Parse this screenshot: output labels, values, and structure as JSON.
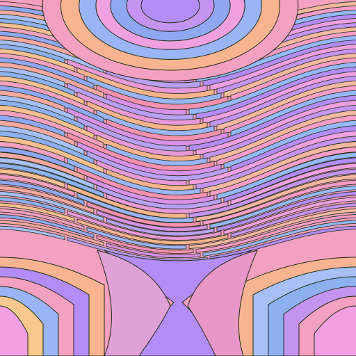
{
  "artwork": {
    "kind": "abstract-wave-bands",
    "outline_color": "#1b2a12",
    "palette": [
      "#f4a0c0",
      "#b48cf8",
      "#f7b48c",
      "#8fa8f4",
      "#f0a0e0",
      "#9ab4f8",
      "#f8a8a0",
      "#c494f0",
      "#f890b0",
      "#a8c0f8",
      "#f4b8a0",
      "#d890e8",
      "#8cb0f0",
      "#f89cc8",
      "#b8a0f4",
      "#f8c090",
      "#94b8f8",
      "#e898d8"
    ]
  }
}
